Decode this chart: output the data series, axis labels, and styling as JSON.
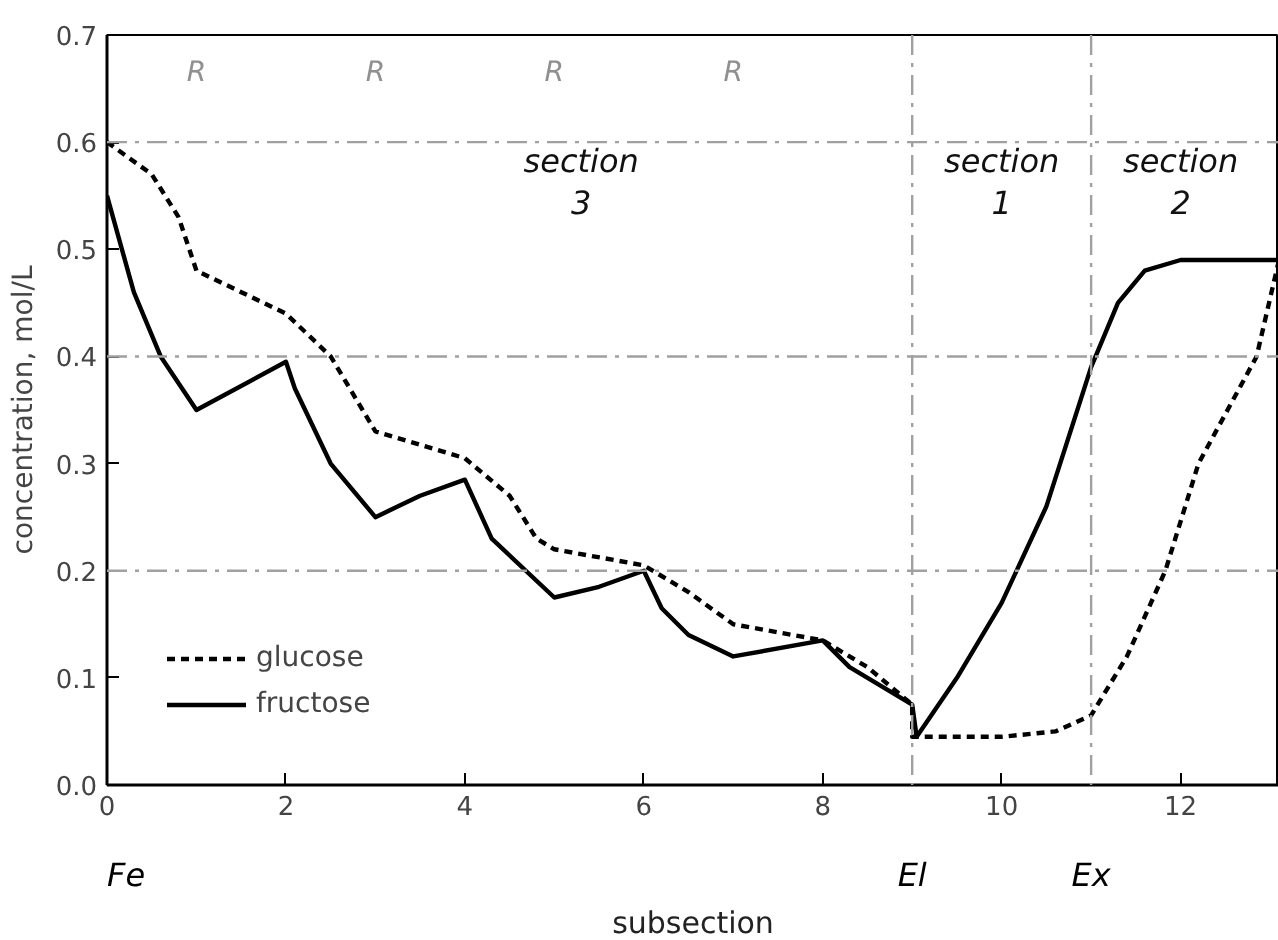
{
  "chart_data": {
    "type": "line",
    "xlabel": "subsection",
    "ylabel": "concentration, mol/L",
    "xlim": [
      0,
      13.1
    ],
    "ylim": [
      0,
      0.7
    ],
    "xticks": [
      0,
      2,
      4,
      6,
      8,
      10,
      12
    ],
    "yticks": [
      {
        "value": 0,
        "label": "0.0"
      },
      {
        "value": 0.1,
        "label": "0.1"
      },
      {
        "value": 0.2,
        "label": "0.2"
      },
      {
        "value": 0.3,
        "label": "0.3"
      },
      {
        "value": 0.4,
        "label": "0.4"
      },
      {
        "value": 0.5,
        "label": "0.5"
      },
      {
        "value": 0.6,
        "label": "0.6"
      },
      {
        "value": 0.7,
        "label": "0.7"
      }
    ],
    "grid": false,
    "legend": "bottom left",
    "series": [
      {
        "name": "glucose",
        "color": "#000000",
        "line_style": "dashed",
        "x": [
          0,
          0.5,
          0.8,
          1,
          2,
          2.5,
          3,
          4,
          4.5,
          4.8,
          5,
          6,
          6.5,
          7,
          8,
          8.5,
          9,
          9,
          10,
          10.6,
          11,
          11.4,
          11.83,
          12.2,
          12.85,
          13.1
        ],
        "values": [
          0.6,
          0.57,
          0.53,
          0.48,
          0.44,
          0.4,
          0.33,
          0.305,
          0.27,
          0.23,
          0.22,
          0.205,
          0.18,
          0.15,
          0.135,
          0.11,
          0.075,
          0.045,
          0.045,
          0.05,
          0.065,
          0.12,
          0.2,
          0.3,
          0.4,
          0.49
        ]
      },
      {
        "name": "fructose",
        "color": "#000000",
        "line_style": "solid",
        "x": [
          0,
          0.3,
          0.6,
          1,
          2,
          2.1,
          2.5,
          3,
          3.5,
          4,
          4.3,
          5,
          5.5,
          6,
          6.2,
          6.5,
          7,
          8,
          8.3,
          9,
          9.05,
          9.5,
          10,
          10.5,
          11,
          11.3,
          11.6,
          12,
          13.1
        ],
        "values": [
          0.55,
          0.46,
          0.4,
          0.35,
          0.395,
          0.37,
          0.3,
          0.25,
          0.27,
          0.285,
          0.23,
          0.175,
          0.185,
          0.2,
          0.165,
          0.14,
          0.12,
          0.135,
          0.11,
          0.075,
          0.045,
          0.1,
          0.17,
          0.26,
          0.39,
          0.45,
          0.48,
          0.49,
          0.49
        ]
      }
    ],
    "ref_lines": [
      {
        "axis": "y",
        "value": 0.2,
        "color": "#a0a0a0",
        "line_style": "dashdot"
      },
      {
        "axis": "y",
        "value": 0.4,
        "color": "#a0a0a0",
        "line_style": "dashdot"
      },
      {
        "axis": "y",
        "value": 0.6,
        "color": "#a0a0a0",
        "line_style": "dashdot"
      },
      {
        "axis": "x",
        "value": 9,
        "color": "#a0a0a0",
        "line_style": "dashdot"
      },
      {
        "axis": "x",
        "value": 11,
        "color": "#a0a0a0",
        "line_style": "dashdot"
      }
    ],
    "annotations": [
      "R",
      "R",
      "R",
      "R",
      {
        "text": "section\n3",
        "x": 5.3,
        "y": 0.6
      },
      {
        "text": "section\n1",
        "x": 10.0,
        "y": 0.6
      },
      {
        "text": "section\n2",
        "x": 12.0,
        "y": 0.6
      },
      "Fe",
      "El",
      "Ex"
    ]
  }
}
